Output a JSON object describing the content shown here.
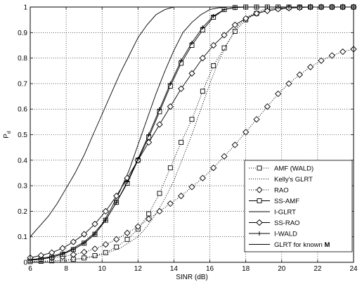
{
  "chart_data": {
    "type": "line",
    "title": "",
    "xlabel": "SINR (dB)",
    "ylabel": "P",
    "ylabel_subscript": "d",
    "xlim": [
      6,
      24
    ],
    "ylim": [
      0,
      1
    ],
    "xticks": [
      "6",
      "8",
      "10",
      "12",
      "14",
      "16",
      "18",
      "20",
      "22",
      "24"
    ],
    "yticks": [
      "0",
      "0.1",
      "0.2",
      "0.3",
      "0.4",
      "0.5",
      "0.6",
      "0.7",
      "0.8",
      "0.9",
      "1"
    ],
    "grid": true,
    "legend_position": "bottom-right",
    "series": [
      {
        "name": "AMF (WALD)",
        "line": "dotted",
        "marker": "square",
        "x": [
          6,
          6.6,
          7.2,
          7.8,
          8.4,
          9,
          9.6,
          10.2,
          10.8,
          11.4,
          12,
          12.6,
          13.2,
          13.8,
          14.4,
          15,
          15.6,
          16.2,
          16.8,
          17.4,
          18,
          18.6,
          19.2,
          19.8,
          20.4,
          21,
          21.6,
          22.2,
          22.8,
          23.4,
          24
        ],
        "y": [
          0.003,
          0.004,
          0.006,
          0.008,
          0.012,
          0.017,
          0.026,
          0.038,
          0.06,
          0.09,
          0.13,
          0.19,
          0.27,
          0.37,
          0.47,
          0.56,
          0.67,
          0.77,
          0.84,
          0.905,
          0.95,
          0.975,
          0.99,
          0.995,
          0.998,
          0.999,
          1,
          1,
          1,
          1,
          1
        ]
      },
      {
        "name": "Kelly's GLRT",
        "line": "dotted",
        "marker": "none",
        "x": [
          6,
          7,
          8,
          9,
          10,
          11,
          12,
          12.5,
          13,
          13.5,
          14,
          14.5,
          15,
          15.5,
          16,
          16.5,
          17,
          17.5,
          18,
          19,
          20,
          21,
          22,
          23,
          24
        ],
        "y": [
          0.002,
          0.004,
          0.008,
          0.015,
          0.03,
          0.055,
          0.1,
          0.14,
          0.19,
          0.25,
          0.32,
          0.41,
          0.5,
          0.6,
          0.7,
          0.79,
          0.86,
          0.92,
          0.96,
          0.99,
          0.998,
          1,
          1,
          1,
          1
        ]
      },
      {
        "name": "RAO",
        "line": "dotted",
        "marker": "diamond",
        "x": [
          6,
          6.6,
          7.2,
          7.8,
          8.4,
          9,
          9.6,
          10.2,
          10.8,
          11.4,
          12,
          12.6,
          13.2,
          13.8,
          14.4,
          15,
          15.6,
          16.2,
          16.8,
          17.4,
          18,
          18.6,
          19.2,
          19.8,
          20.4,
          21,
          21.6,
          22.2,
          22.8,
          23.4,
          24
        ],
        "y": [
          0.01,
          0.013,
          0.017,
          0.022,
          0.03,
          0.04,
          0.053,
          0.07,
          0.09,
          0.115,
          0.14,
          0.17,
          0.2,
          0.23,
          0.26,
          0.295,
          0.33,
          0.37,
          0.415,
          0.46,
          0.51,
          0.56,
          0.61,
          0.66,
          0.7,
          0.735,
          0.765,
          0.79,
          0.81,
          0.825,
          0.835
        ]
      },
      {
        "name": "SS-AMF",
        "line": "solid",
        "marker": "square",
        "x": [
          6,
          6.6,
          7.2,
          7.8,
          8.4,
          9,
          9.6,
          10.2,
          10.8,
          11.4,
          12,
          12.6,
          13.2,
          13.8,
          14.4,
          15,
          15.6,
          16.2,
          16.8,
          17.4,
          18,
          18.6,
          19.2,
          19.8,
          20.4,
          21,
          21.6,
          22.2,
          22.8,
          23.4,
          24
        ],
        "y": [
          0.008,
          0.012,
          0.02,
          0.032,
          0.05,
          0.075,
          0.11,
          0.165,
          0.235,
          0.31,
          0.4,
          0.49,
          0.59,
          0.69,
          0.78,
          0.85,
          0.91,
          0.96,
          0.99,
          0.998,
          1,
          1,
          1,
          1,
          1,
          1,
          1,
          1,
          1,
          1,
          1
        ]
      },
      {
        "name": "I-GLRT",
        "line": "solid",
        "marker": "none",
        "x": [
          6,
          7,
          8,
          9,
          9.5,
          10,
          10.5,
          11,
          11.5,
          12,
          12.5,
          13,
          13.5,
          14,
          14.5,
          15,
          15.5,
          16,
          16.5,
          17,
          18,
          20,
          22,
          24
        ],
        "y": [
          0.01,
          0.02,
          0.04,
          0.08,
          0.11,
          0.15,
          0.21,
          0.28,
          0.36,
          0.46,
          0.56,
          0.66,
          0.75,
          0.83,
          0.9,
          0.94,
          0.97,
          0.99,
          0.997,
          1,
          1,
          1,
          1,
          1
        ]
      },
      {
        "name": "SS-RAO",
        "line": "solid",
        "marker": "diamond",
        "x": [
          6,
          6.6,
          7.2,
          7.8,
          8.4,
          9,
          9.6,
          10.2,
          10.8,
          11.4,
          12,
          12.6,
          13.2,
          13.8,
          14.4,
          15,
          15.6,
          16.2,
          16.8,
          17.4,
          18,
          18.6,
          19.2,
          19.8,
          20.4,
          21,
          21.6,
          22.2,
          22.8,
          23.4,
          24
        ],
        "y": [
          0.018,
          0.027,
          0.038,
          0.055,
          0.08,
          0.11,
          0.15,
          0.2,
          0.26,
          0.33,
          0.4,
          0.47,
          0.54,
          0.61,
          0.68,
          0.74,
          0.8,
          0.85,
          0.89,
          0.93,
          0.955,
          0.975,
          0.985,
          0.992,
          0.996,
          0.998,
          1,
          1,
          1,
          1,
          1
        ]
      },
      {
        "name": "I-WALD",
        "line": "solid",
        "marker": "plus",
        "x": [
          6,
          6.6,
          7.2,
          7.8,
          8.4,
          9,
          9.6,
          10.2,
          10.8,
          11.4,
          12,
          12.6,
          13.2,
          13.8,
          14.4,
          15,
          15.6,
          16.2,
          16.8,
          17.4,
          18,
          18.6,
          19.2,
          19.8,
          20.4,
          21,
          21.6,
          22.2,
          22.8,
          23.4,
          24
        ],
        "y": [
          0.008,
          0.012,
          0.02,
          0.032,
          0.05,
          0.075,
          0.11,
          0.165,
          0.235,
          0.315,
          0.405,
          0.5,
          0.6,
          0.7,
          0.79,
          0.86,
          0.92,
          0.965,
          0.99,
          0.998,
          1,
          1,
          1,
          1,
          1,
          1,
          1,
          1,
          1,
          1,
          1
        ]
      },
      {
        "name": "GLRT for known M",
        "line": "solid",
        "marker": "none",
        "x": [
          6,
          6.5,
          7,
          7.5,
          8,
          8.5,
          9,
          9.5,
          10,
          10.5,
          11,
          11.5,
          12,
          12.5,
          13,
          13.5,
          14,
          15,
          16,
          18,
          20,
          22,
          24
        ],
        "y": [
          0.1,
          0.14,
          0.18,
          0.23,
          0.29,
          0.35,
          0.42,
          0.5,
          0.58,
          0.66,
          0.74,
          0.81,
          0.88,
          0.93,
          0.97,
          0.99,
          1,
          1,
          1,
          1,
          1,
          1,
          1
        ]
      }
    ],
    "legend": [
      "AMF (WALD)",
      "Kelly's GLRT",
      "RAO",
      "SS-AMF",
      "I-GLRT",
      "SS-RAO",
      "I-WALD",
      "GLRT for known M"
    ],
    "legend_bold_suffix_item": 7,
    "legend_bold_suffix": "M"
  }
}
